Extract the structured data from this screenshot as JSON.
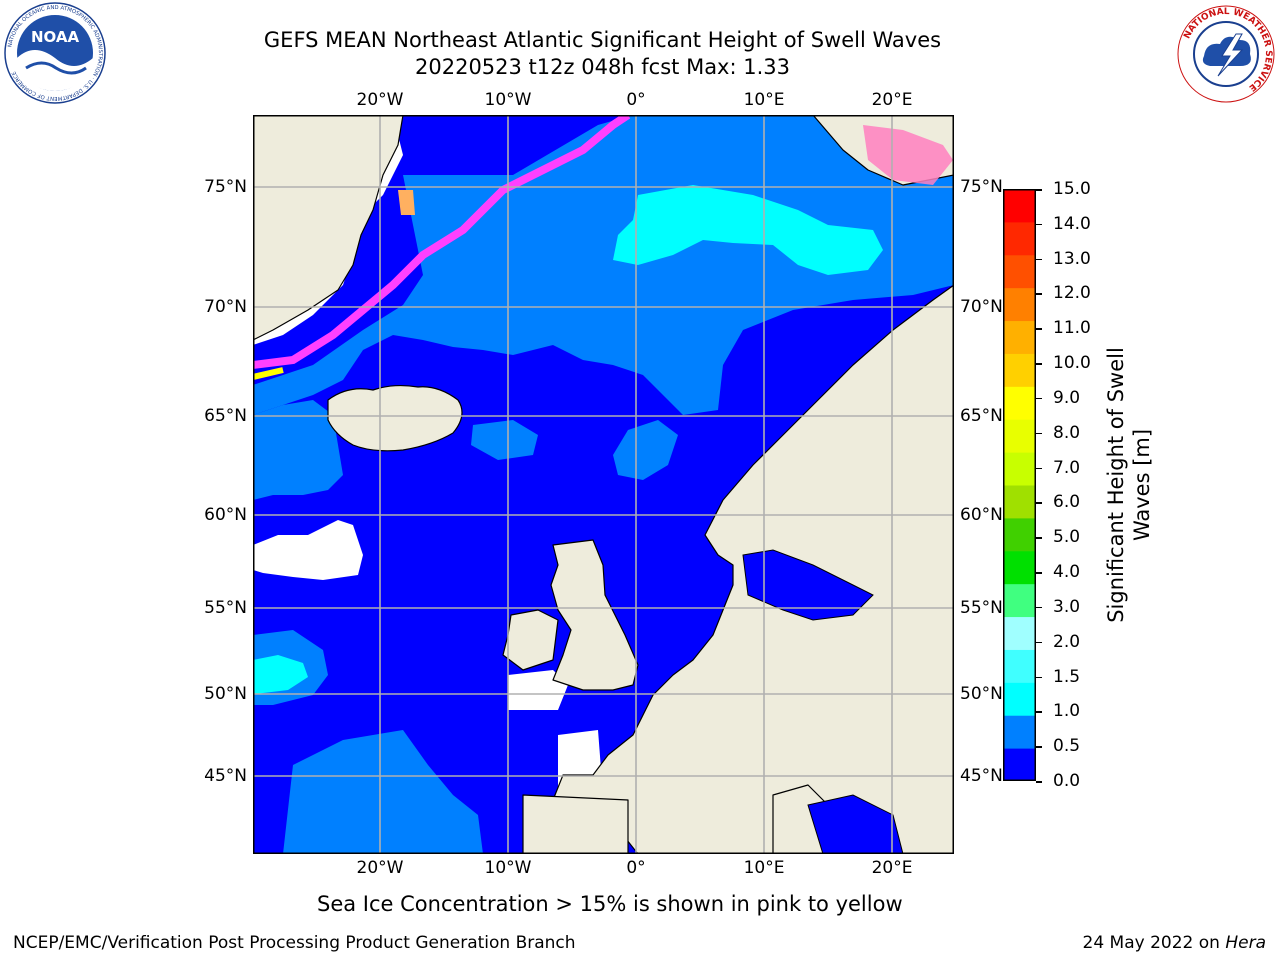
{
  "title": {
    "line1": "GEFS MEAN Northeast Atlantic Significant Height of Swell Waves",
    "line2": "20220523 t12z 048h fcst   Max: 1.33"
  },
  "logos": {
    "noaa": {
      "label": "NOAA",
      "ring_text": "NATIONAL OCEANIC AND ATMOSPHERIC ADMINISTRATION · U.S. DEPARTMENT OF COMMERCE"
    },
    "nws": {
      "ring_text": "NATIONAL WEATHER SERVICE"
    }
  },
  "map": {
    "top_ticks": [
      "20°W",
      "10°W",
      "0°",
      "10°E",
      "20°E"
    ],
    "bottom_ticks": [
      "20°W",
      "10°W",
      "0°",
      "10°E",
      "20°E"
    ],
    "left_ticks": [
      "75°N",
      "70°N",
      "65°N",
      "60°N",
      "55°N",
      "50°N",
      "45°N"
    ],
    "right_ticks": [
      "75°N",
      "70°N",
      "65°N",
      "60°N",
      "55°N",
      "50°N",
      "45°N"
    ],
    "colors": {
      "land": "#eeecdc",
      "ocean_low": "#0000ff",
      "ocean_mid": "#0080ff",
      "ocean_high": "#00ffff",
      "undefined": "#ffffff",
      "grid": "#b0b0b0",
      "coast": "#000000"
    }
  },
  "colorbar": {
    "ticks": [
      "15.0",
      "14.0",
      "13.0",
      "12.0",
      "11.0",
      "10.0",
      "9.0",
      "8.0",
      "7.0",
      "6.0",
      "5.0",
      "4.0",
      "3.0",
      "2.0",
      "1.5",
      "1.0",
      "0.5",
      "0.0"
    ],
    "label_line1": "Significant Height of Swell",
    "label_line2": "Waves [m]",
    "colors": [
      "#0000ff",
      "#0080ff",
      "#00ffff",
      "#40ffff",
      "#a0ffff",
      "#40ff80",
      "#00e000",
      "#40d000",
      "#a0e000",
      "#c8ff00",
      "#e8ff00",
      "#ffff00",
      "#ffd000",
      "#ffb000",
      "#ff8000",
      "#ff5000",
      "#ff2800",
      "#ff0000"
    ]
  },
  "sea_ice_note": "Sea Ice Concentration > 15% is shown in pink to yellow",
  "footer": {
    "left": "NCEP/EMC/Verification Post Processing Product Generation Branch",
    "right_prefix": "24 May 2022 on ",
    "right_host": "Hera"
  }
}
